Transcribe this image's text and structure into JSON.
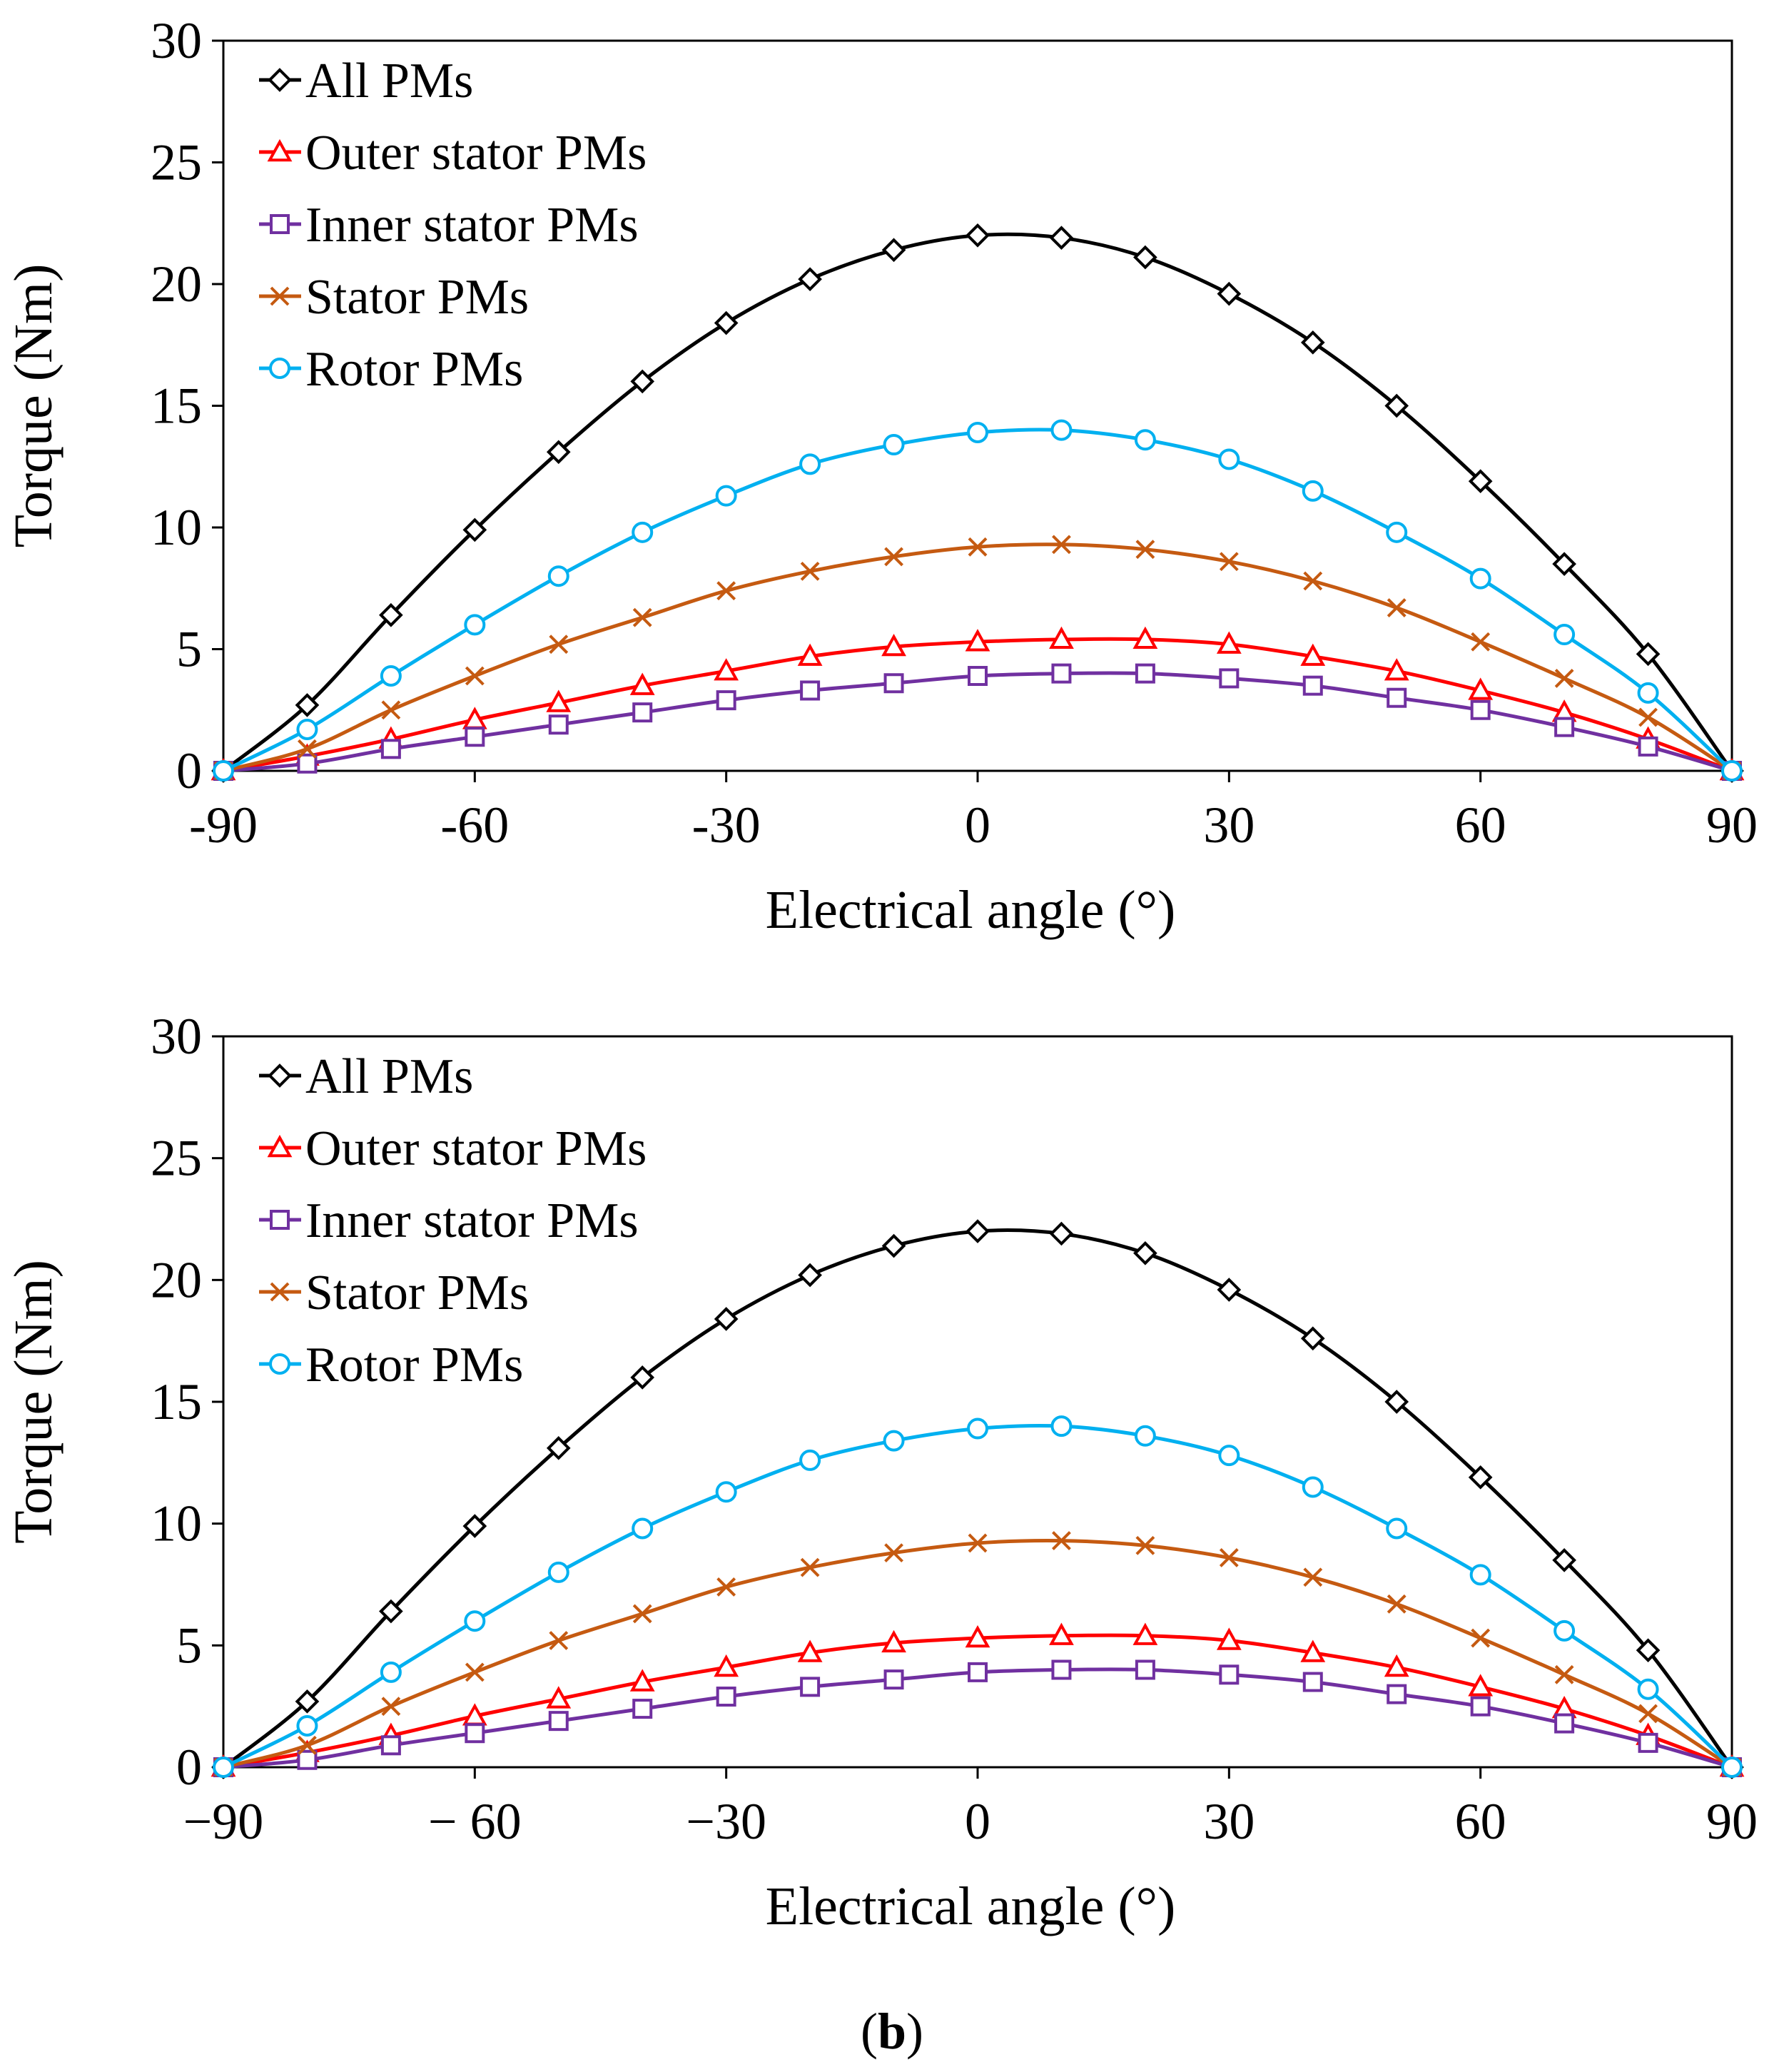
{
  "figure": {
    "caption_open": "(",
    "caption_letter": "b",
    "caption_close": ")"
  },
  "chart_data": [
    {
      "type": "line",
      "title": "",
      "xlabel": "Electrical angle (°)",
      "ylabel": "Torque (Nm)",
      "xlim": [
        -90,
        90
      ],
      "ylim": [
        0,
        30
      ],
      "x_ticks": [
        -90,
        -60,
        -30,
        0,
        30,
        60,
        90
      ],
      "x_tick_labels": [
        "-90",
        "-60",
        "-30",
        "0",
        "30",
        "60",
        "90"
      ],
      "y_ticks": [
        0,
        5,
        10,
        15,
        20,
        25,
        30
      ],
      "y_tick_labels": [
        "0",
        "5",
        "10",
        "15",
        "20",
        "25",
        "30"
      ],
      "grid": false,
      "legend_position": "top-left",
      "x": [
        -90,
        -80,
        -70,
        -60,
        -50,
        -40,
        -30,
        -20,
        -10,
        0,
        10,
        20,
        30,
        40,
        50,
        60,
        70,
        80,
        90
      ],
      "series": [
        {
          "name": "All PMs",
          "color": "#000000",
          "marker": "diamond",
          "values": [
            0,
            2.7,
            6.4,
            9.9,
            13.1,
            16.0,
            18.4,
            20.2,
            21.4,
            22.0,
            21.9,
            21.1,
            19.6,
            17.6,
            15.0,
            11.9,
            8.5,
            4.8,
            0
          ]
        },
        {
          "name": "Outer stator PMs",
          "color": "#ff0000",
          "marker": "triangle",
          "values": [
            0,
            0.6,
            1.3,
            2.1,
            2.8,
            3.5,
            4.1,
            4.7,
            5.1,
            5.3,
            5.4,
            5.4,
            5.2,
            4.7,
            4.1,
            3.3,
            2.4,
            1.3,
            0
          ]
        },
        {
          "name": "Inner stator PMs",
          "color": "#7030a0",
          "marker": "square",
          "values": [
            0,
            0.3,
            0.9,
            1.4,
            1.9,
            2.4,
            2.9,
            3.3,
            3.6,
            3.9,
            4.0,
            4.0,
            3.8,
            3.5,
            3.0,
            2.5,
            1.8,
            1.0,
            0
          ]
        },
        {
          "name": "Stator PMs",
          "color": "#c55a11",
          "marker": "x",
          "values": [
            0,
            0.9,
            2.5,
            3.9,
            5.2,
            6.3,
            7.4,
            8.2,
            8.8,
            9.2,
            9.3,
            9.1,
            8.6,
            7.8,
            6.7,
            5.3,
            3.8,
            2.2,
            0
          ]
        },
        {
          "name": "Rotor PMs",
          "color": "#00b0f0",
          "marker": "circle",
          "values": [
            0,
            1.7,
            3.9,
            6.0,
            8.0,
            9.8,
            11.3,
            12.6,
            13.4,
            13.9,
            14.0,
            13.6,
            12.8,
            11.5,
            9.8,
            7.9,
            5.6,
            3.2,
            0
          ]
        }
      ]
    },
    {
      "type": "line",
      "title": "",
      "xlabel": "Electrical angle (°)",
      "ylabel": "Torque (Nm)",
      "xlim": [
        -90,
        90
      ],
      "ylim": [
        0,
        30
      ],
      "x_ticks": [
        -90,
        -60,
        -30,
        0,
        30,
        60,
        90
      ],
      "x_tick_labels": [
        "−90",
        "− 60",
        "−30",
        "0",
        "30",
        "60",
        "90"
      ],
      "y_ticks": [
        0,
        5,
        10,
        15,
        20,
        25,
        30
      ],
      "y_tick_labels": [
        "0",
        "5",
        "10",
        "15",
        "20",
        "25",
        "30"
      ],
      "grid": false,
      "legend_position": "top-left",
      "x": [
        -90,
        -80,
        -70,
        -60,
        -50,
        -40,
        -30,
        -20,
        -10,
        0,
        10,
        20,
        30,
        40,
        50,
        60,
        70,
        80,
        90
      ],
      "series": [
        {
          "name": "All PMs",
          "color": "#000000",
          "marker": "diamond",
          "values": [
            0,
            2.7,
            6.4,
            9.9,
            13.1,
            16.0,
            18.4,
            20.2,
            21.4,
            22.0,
            21.9,
            21.1,
            19.6,
            17.6,
            15.0,
            11.9,
            8.5,
            4.8,
            0
          ]
        },
        {
          "name": "Outer stator PMs",
          "color": "#ff0000",
          "marker": "triangle",
          "values": [
            0,
            0.6,
            1.3,
            2.1,
            2.8,
            3.5,
            4.1,
            4.7,
            5.1,
            5.3,
            5.4,
            5.4,
            5.2,
            4.7,
            4.1,
            3.3,
            2.4,
            1.3,
            0
          ]
        },
        {
          "name": "Inner stator PMs",
          "color": "#7030a0",
          "marker": "square",
          "values": [
            0,
            0.3,
            0.9,
            1.4,
            1.9,
            2.4,
            2.9,
            3.3,
            3.6,
            3.9,
            4.0,
            4.0,
            3.8,
            3.5,
            3.0,
            2.5,
            1.8,
            1.0,
            0
          ]
        },
        {
          "name": "Stator PMs",
          "color": "#c55a11",
          "marker": "x",
          "values": [
            0,
            0.9,
            2.5,
            3.9,
            5.2,
            6.3,
            7.4,
            8.2,
            8.8,
            9.2,
            9.3,
            9.1,
            8.6,
            7.8,
            6.7,
            5.3,
            3.8,
            2.2,
            0
          ]
        },
        {
          "name": "Rotor PMs",
          "color": "#00b0f0",
          "marker": "circle",
          "values": [
            0,
            1.7,
            3.9,
            6.0,
            8.0,
            9.8,
            11.3,
            12.6,
            13.4,
            13.9,
            14.0,
            13.6,
            12.8,
            11.5,
            9.8,
            7.9,
            5.6,
            3.2,
            0
          ]
        }
      ]
    }
  ]
}
